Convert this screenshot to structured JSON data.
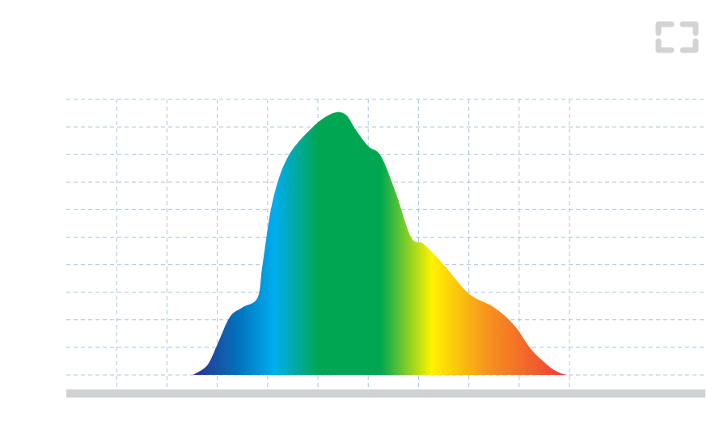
{
  "chart_data": {
    "type": "area",
    "title": "",
    "xlabel": "",
    "ylabel": "",
    "xlim": [
      0,
      12.7
    ],
    "ylim": [
      0,
      10
    ],
    "grid": true,
    "x_gridlines": [
      1,
      2,
      3,
      4,
      5,
      6,
      7,
      8,
      9,
      10
    ],
    "y_gridlines": [
      0,
      1,
      2,
      3,
      4,
      5,
      6,
      7,
      8,
      9,
      10
    ],
    "x": [
      2.52,
      2.8,
      3.0,
      3.25,
      3.5,
      3.8,
      3.9,
      4.1,
      4.4,
      4.9,
      5.3,
      5.55,
      5.75,
      6.0,
      6.25,
      6.55,
      6.85,
      7.1,
      7.5,
      8.0,
      8.5,
      8.9,
      9.25,
      9.6,
      9.8,
      9.95
    ],
    "values": [
      0.0,
      0.35,
      1.1,
      2.1,
      2.45,
      2.8,
      4.0,
      6.3,
      7.9,
      9.0,
      9.5,
      9.45,
      8.9,
      8.3,
      7.95,
      6.6,
      5.0,
      4.75,
      4.0,
      2.95,
      2.45,
      1.8,
      0.9,
      0.3,
      0.08,
      0.0
    ],
    "color_stops": [
      "#2e3192",
      "#0072bc",
      "#00aeef",
      "#00a651",
      "#00a651",
      "#fff200",
      "#f7941d",
      "#ef4136"
    ]
  },
  "icons": {
    "corner": "expand-frame-icon",
    "corner_color": "#d3d3d3"
  }
}
